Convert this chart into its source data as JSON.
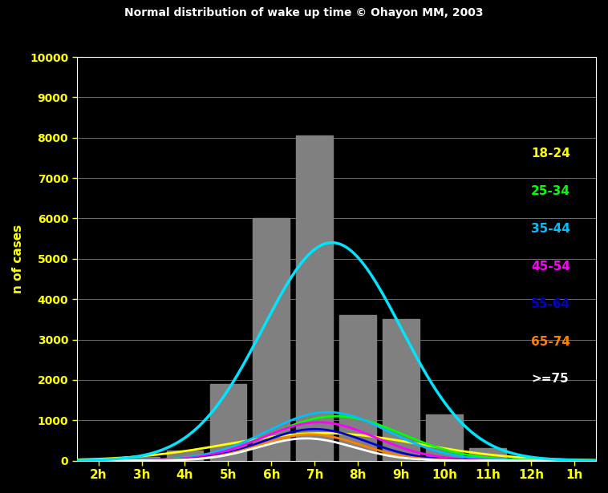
{
  "title": "Normal distribution of wake up time © Ohayon MM, 2003",
  "ylabel": "n of cases",
  "background_color": "#000000",
  "plot_bg_color": "#000000",
  "bar_color": "#808080",
  "title_color": "#ffffff",
  "axis_label_color": "#ffff00",
  "tick_color": "#ffff00",
  "grid_color": "#ffffff",
  "ylim": [
    0,
    10000
  ],
  "yticks": [
    0,
    1000,
    2000,
    3000,
    4000,
    5000,
    6000,
    7000,
    8000,
    9000,
    10000
  ],
  "x_labels": [
    "2h",
    "3h",
    "4h",
    "5h",
    "6h",
    "7h",
    "8h",
    "9h",
    "10h",
    "11h",
    "12h",
    "1h"
  ],
  "bar_heights": [
    50,
    100,
    250,
    1900,
    6000,
    8050,
    3600,
    3500,
    1150,
    300,
    80,
    30
  ],
  "curves": [
    {
      "label": "18-24",
      "color": "#ffff00",
      "mu_idx": 5.2,
      "sigma": 2.2,
      "peak": 680
    },
    {
      "label": "25-34",
      "color": "#00ff00",
      "mu_idx": 5.5,
      "sigma": 1.5,
      "peak": 1100
    },
    {
      "label": "35-44",
      "color": "#00bfff",
      "mu_idx": 5.3,
      "sigma": 1.4,
      "peak": 1200
    },
    {
      "label": "45-54",
      "color": "#ff00ff",
      "mu_idx": 5.1,
      "sigma": 1.3,
      "peak": 950
    },
    {
      "label": "55-64",
      "color": "#0000cd",
      "mu_idx": 5.0,
      "sigma": 1.2,
      "peak": 780
    },
    {
      "label": "65-74",
      "color": "#ff8000",
      "mu_idx": 4.9,
      "sigma": 1.15,
      "peak": 650
    },
    {
      "label": ">=75",
      "color": "#ffffff",
      "mu_idx": 4.8,
      "sigma": 1.1,
      "peak": 550
    }
  ],
  "total_curve": {
    "color": "#00e5ff",
    "mu_idx": 5.4,
    "sigma": 1.6,
    "peak": 5400
  },
  "legend_labels": [
    {
      "text": "18-24",
      "color": "#ffff00"
    },
    {
      "text": "25-34",
      "color": "#00ff00"
    },
    {
      "text": "35-44",
      "color": "#00bfff"
    },
    {
      "text": "45-54",
      "color": "#ff00ff"
    },
    {
      "text": "55-64",
      "color": "#0000cd"
    },
    {
      "text": "65-74",
      "color": "#ff8000"
    },
    {
      "text": ">=75",
      "color": "#ffffff"
    }
  ]
}
